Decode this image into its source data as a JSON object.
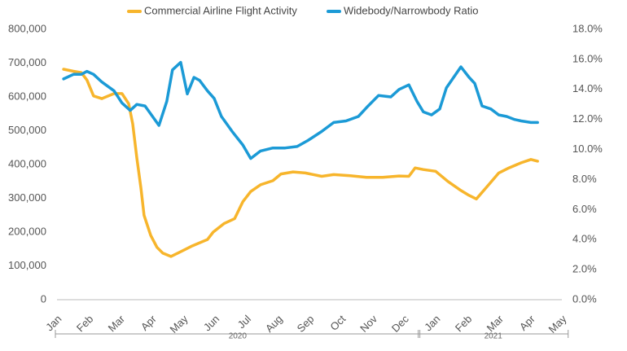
{
  "chart_data": {
    "type": "line",
    "xlim": [
      0,
      16
    ],
    "xticks": [
      {
        "value": 0,
        "label": "Jan"
      },
      {
        "value": 1,
        "label": "Feb"
      },
      {
        "value": 2,
        "label": "Mar"
      },
      {
        "value": 3,
        "label": "Apr"
      },
      {
        "value": 4,
        "label": "May"
      },
      {
        "value": 5,
        "label": "Jun"
      },
      {
        "value": 6,
        "label": "Jul"
      },
      {
        "value": 7,
        "label": "Aug"
      },
      {
        "value": 8,
        "label": "Sep"
      },
      {
        "value": 9,
        "label": "Oct"
      },
      {
        "value": 10,
        "label": "Nov"
      },
      {
        "value": 11,
        "label": "Dec"
      },
      {
        "value": 12,
        "label": "Jan"
      },
      {
        "value": 13,
        "label": "Feb"
      },
      {
        "value": 14,
        "label": "Mar"
      },
      {
        "value": 15,
        "label": "Apr"
      },
      {
        "value": 16,
        "label": "May"
      }
    ],
    "x_groups": [
      {
        "label": "2020",
        "range": [
          0,
          11.5
        ]
      },
      {
        "label": "2021",
        "range": [
          11.5,
          16.2
        ]
      }
    ],
    "ylim": [
      0,
      800000
    ],
    "yticks": [
      0,
      {
        "value": 100000,
        "label": "100,000"
      },
      {
        "value": 200000,
        "label": "200,000"
      },
      {
        "value": 300000,
        "label": "300,000"
      },
      {
        "value": 400000,
        "label": "400,000"
      },
      {
        "value": 500000,
        "label": "500,000"
      },
      {
        "value": 600000,
        "label": "600,000"
      },
      {
        "value": 700000,
        "label": "700,000"
      },
      {
        "value": 800000,
        "label": "800,000"
      }
    ],
    "y2lim": [
      0,
      18
    ],
    "y2ticks": [
      {
        "value": 0,
        "label": "0.0%"
      },
      {
        "value": 2,
        "label": "2.0%"
      },
      {
        "value": 4,
        "label": "4.0%"
      },
      {
        "value": 6,
        "label": "6.0%"
      },
      {
        "value": 8,
        "label": "8.0%"
      },
      {
        "value": 10,
        "label": "10.0%"
      },
      {
        "value": 12,
        "label": "12.0%"
      },
      {
        "value": 14,
        "label": "14.0%"
      },
      {
        "value": 16,
        "label": "16.0%"
      },
      {
        "value": 18,
        "label": "18.0%"
      }
    ],
    "legend": "top",
    "grid": false,
    "series": [
      {
        "name": "Commercial Airline Flight Activity",
        "color": "#f7b52c",
        "x": [
          0.21,
          0.52,
          0.77,
          0.95,
          1.16,
          1.42,
          1.81,
          2.06,
          2.27,
          2.4,
          2.53,
          2.66,
          2.76,
          2.97,
          3.17,
          3.35,
          3.61,
          3.92,
          4.26,
          4.77,
          4.95,
          5.29,
          5.63,
          5.89,
          6.14,
          6.45,
          6.84,
          7.1,
          7.48,
          7.87,
          8.39,
          8.77,
          9.29,
          9.81,
          10.32,
          10.84,
          11.15,
          11.35,
          11.61,
          12.0,
          12.39,
          12.77,
          13.03,
          13.29,
          13.68,
          14.0,
          14.32,
          14.71,
          15.02,
          15.23
        ],
        "values": [
          682000,
          676000,
          672000,
          650000,
          603000,
          595000,
          610000,
          610000,
          580000,
          520000,
          420000,
          330000,
          250000,
          190000,
          155000,
          138000,
          128000,
          142000,
          158000,
          178000,
          200000,
          225000,
          240000,
          290000,
          320000,
          340000,
          352000,
          372000,
          378000,
          375000,
          365000,
          370000,
          367000,
          362000,
          362000,
          366000,
          365000,
          390000,
          385000,
          380000,
          350000,
          325000,
          310000,
          298000,
          340000,
          375000,
          390000,
          405000,
          415000,
          410000
        ]
      },
      {
        "name": "Widebody/Narrowbody Ratio",
        "color": "#1b9ad6",
        "axis": "y2",
        "x": [
          0.21,
          0.52,
          0.77,
          0.95,
          1.16,
          1.42,
          1.81,
          2.06,
          2.32,
          2.53,
          2.79,
          3.23,
          3.48,
          3.66,
          3.92,
          4.13,
          4.34,
          4.52,
          4.77,
          4.98,
          5.21,
          5.55,
          5.89,
          6.14,
          6.45,
          6.84,
          7.23,
          7.61,
          7.95,
          8.39,
          8.77,
          9.16,
          9.55,
          9.86,
          10.19,
          10.58,
          10.84,
          11.15,
          11.41,
          11.61,
          11.87,
          12.13,
          12.34,
          12.57,
          12.8,
          13.06,
          13.24,
          13.47,
          13.75,
          14.0,
          14.25,
          14.5,
          14.71,
          15.02,
          15.23
        ],
        "values": [
          14.7,
          15.0,
          15.0,
          15.2,
          15.0,
          14.5,
          13.9,
          13.1,
          12.6,
          13.0,
          12.9,
          11.6,
          13.2,
          15.3,
          15.8,
          13.7,
          14.8,
          14.6,
          13.9,
          13.4,
          12.2,
          11.2,
          10.3,
          9.4,
          9.9,
          10.1,
          10.1,
          10.2,
          10.6,
          11.2,
          11.8,
          11.9,
          12.2,
          12.9,
          13.6,
          13.5,
          14.0,
          14.3,
          13.2,
          12.5,
          12.3,
          12.7,
          14.1,
          14.8,
          15.5,
          14.8,
          14.4,
          12.9,
          12.7,
          12.3,
          12.2,
          12.0,
          11.9,
          11.8,
          11.8
        ]
      }
    ]
  }
}
